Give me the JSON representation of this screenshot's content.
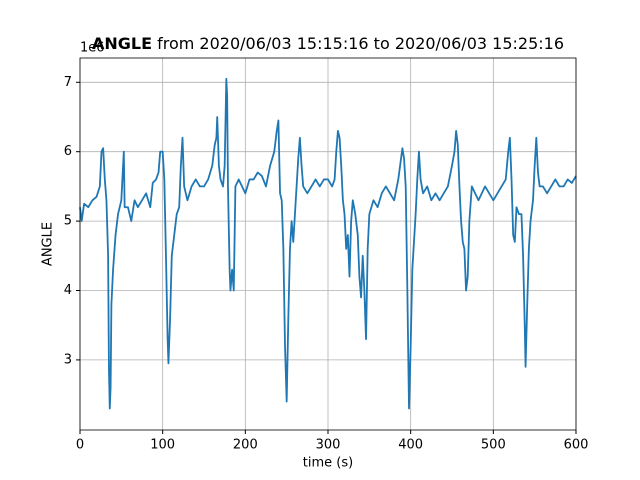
{
  "chart_data": {
    "type": "line",
    "title_bold": "ANGLE",
    "title": "from 2020/06/03 15:15:16 to 2020/06/03 15:25:16",
    "x_label": "time (s)",
    "y_label": "ANGLE",
    "y_offset_label": "1e6",
    "color": "#1f77b4",
    "grid": true,
    "xlim": [
      0,
      600
    ],
    "xticks": [
      0,
      100,
      200,
      300,
      400,
      500,
      600
    ],
    "ylim": [
      1.99,
      7.35
    ],
    "yticks": [
      3,
      4,
      5,
      6,
      7
    ],
    "x": [
      0,
      2,
      5,
      10,
      15,
      20,
      24,
      26,
      28,
      30,
      32,
      34,
      35,
      36,
      37,
      38,
      40,
      43,
      46,
      50,
      53,
      54,
      58,
      62,
      66,
      70,
      75,
      80,
      85,
      88,
      92,
      95,
      97,
      100,
      102,
      104,
      106,
      107,
      109,
      111,
      114,
      117,
      120,
      122,
      124,
      126,
      130,
      135,
      140,
      145,
      150,
      155,
      160,
      163,
      165,
      166,
      168,
      170,
      173,
      175,
      177,
      178,
      179,
      181,
      182,
      184,
      186,
      188,
      192,
      196,
      200,
      205,
      210,
      215,
      220,
      225,
      230,
      235,
      238,
      240,
      242,
      244,
      246,
      248,
      250,
      252,
      254,
      256,
      258,
      260,
      262,
      264,
      266,
      268,
      270,
      275,
      280,
      285,
      290,
      295,
      300,
      305,
      308,
      310,
      312,
      314,
      316,
      318,
      320,
      322,
      324,
      326,
      328,
      330,
      333,
      336,
      338,
      340,
      342,
      344,
      346,
      348,
      350,
      355,
      360,
      365,
      370,
      375,
      380,
      385,
      390,
      392,
      394,
      396,
      398,
      400,
      402,
      404,
      406,
      408,
      410,
      412,
      415,
      420,
      425,
      430,
      435,
      440,
      445,
      450,
      453,
      455,
      457,
      459,
      461,
      463,
      465,
      467,
      469,
      471,
      474,
      478,
      482,
      486,
      490,
      495,
      500,
      505,
      510,
      515,
      518,
      520,
      522,
      524,
      526,
      528,
      531,
      534,
      536,
      538,
      539,
      541,
      543,
      545,
      548,
      550,
      552,
      554,
      556,
      560,
      565,
      570,
      575,
      580,
      585,
      590,
      595,
      600
    ],
    "values": [
      5.2,
      5.0,
      5.25,
      5.2,
      5.3,
      5.35,
      5.5,
      6.0,
      6.05,
      5.6,
      5.3,
      4.5,
      2.9,
      2.3,
      2.6,
      3.8,
      4.3,
      4.8,
      5.1,
      5.3,
      6.0,
      5.2,
      5.2,
      5.0,
      5.3,
      5.2,
      5.3,
      5.4,
      5.2,
      5.55,
      5.6,
      5.7,
      6.0,
      6.0,
      5.6,
      4.5,
      3.3,
      2.95,
      3.6,
      4.5,
      4.8,
      5.1,
      5.2,
      5.8,
      6.2,
      5.5,
      5.3,
      5.5,
      5.6,
      5.5,
      5.5,
      5.6,
      5.8,
      6.1,
      6.2,
      6.5,
      5.8,
      5.6,
      5.5,
      5.8,
      7.05,
      6.8,
      5.5,
      4.3,
      4.0,
      4.3,
      4.0,
      5.5,
      5.6,
      5.5,
      5.4,
      5.6,
      5.6,
      5.7,
      5.65,
      5.5,
      5.8,
      6.0,
      6.3,
      6.45,
      5.4,
      5.3,
      4.6,
      3.2,
      2.4,
      3.6,
      4.6,
      5.0,
      4.7,
      5.1,
      5.5,
      5.9,
      6.2,
      5.8,
      5.5,
      5.4,
      5.5,
      5.6,
      5.5,
      5.6,
      5.6,
      5.5,
      5.6,
      6.0,
      6.3,
      6.2,
      5.8,
      5.3,
      5.1,
      4.6,
      4.8,
      4.2,
      5.0,
      5.3,
      5.1,
      4.8,
      4.2,
      3.9,
      4.5,
      4.0,
      3.3,
      4.6,
      5.1,
      5.3,
      5.2,
      5.4,
      5.5,
      5.4,
      5.3,
      5.6,
      6.05,
      5.9,
      5.5,
      4.0,
      2.3,
      3.2,
      4.3,
      4.7,
      5.1,
      5.6,
      6.0,
      5.6,
      5.4,
      5.5,
      5.3,
      5.4,
      5.3,
      5.4,
      5.5,
      5.8,
      6.0,
      6.3,
      6.1,
      5.5,
      5.0,
      4.7,
      4.6,
      4.0,
      4.2,
      5.0,
      5.5,
      5.4,
      5.3,
      5.4,
      5.5,
      5.4,
      5.3,
      5.4,
      5.5,
      5.6,
      6.0,
      6.2,
      5.6,
      4.8,
      4.7,
      5.2,
      5.1,
      5.1,
      4.5,
      3.5,
      2.9,
      3.8,
      4.6,
      5.0,
      5.3,
      5.8,
      6.2,
      5.7,
      5.5,
      5.5,
      5.4,
      5.5,
      5.6,
      5.5,
      5.5,
      5.6,
      5.55,
      5.65
    ]
  }
}
